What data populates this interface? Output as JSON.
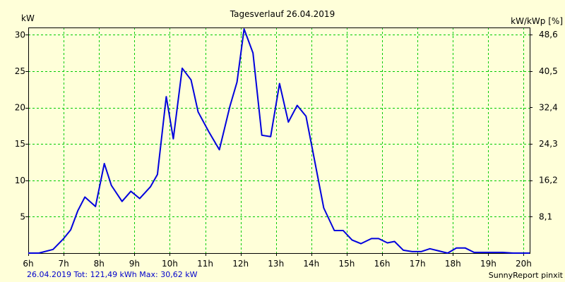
{
  "chart_data": {
    "type": "line",
    "title": "Tagesverlauf 26.04.2019",
    "ylabel": "kW",
    "y2label": "kW/kWp [%]",
    "ylim": [
      0,
      31
    ],
    "y2lim": [
      0,
      50.2
    ],
    "yticks": [
      5,
      10,
      15,
      20,
      25,
      30
    ],
    "yticklabels": [
      "5",
      "10",
      "15",
      "20",
      "25",
      "30"
    ],
    "y2ticks": [
      8.1,
      16.2,
      24.3,
      32.4,
      40.5,
      48.6
    ],
    "y2ticklabels": [
      "8,1",
      "16,2",
      "24,3",
      "32,4",
      "40,5",
      "48,6"
    ],
    "xlim": [
      6,
      20.17
    ],
    "xticks": [
      6,
      7,
      8,
      9,
      10,
      11,
      12,
      13,
      14,
      15,
      16,
      17,
      18,
      19,
      20
    ],
    "xticklabels": [
      "6h",
      "7h",
      "8h",
      "9h",
      "10h",
      "11h",
      "12h",
      "13h",
      "14h",
      "15h",
      "16h",
      "17h",
      "18h",
      "19h",
      "20h"
    ],
    "grid": true,
    "colors": {
      "background": "#ffffd9",
      "grid": "#00cc00",
      "line": "#0000dd",
      "footer_left": "#0000cc"
    },
    "series": [
      {
        "x": [
          6.0,
          6.3,
          6.7,
          7.0,
          7.2,
          7.4,
          7.6,
          7.9,
          8.15,
          8.35,
          8.65,
          8.9,
          9.15,
          9.45,
          9.65,
          9.9,
          10.1,
          10.35,
          10.6,
          10.8,
          11.1,
          11.4,
          11.7,
          11.9,
          12.1,
          12.35,
          12.6,
          12.85,
          13.1,
          13.35,
          13.6,
          13.85,
          14.1,
          14.35,
          14.65,
          14.9,
          15.15,
          15.4,
          15.7,
          15.9,
          16.15,
          16.35,
          16.6,
          16.85,
          17.1,
          17.35,
          17.6,
          17.85,
          18.1,
          18.35,
          18.6,
          18.85,
          19.1,
          19.4,
          19.7,
          20.0,
          20.17
        ],
        "y": [
          0,
          0,
          0.5,
          2,
          3.2,
          5.8,
          7.7,
          6.4,
          12.3,
          9.3,
          7.1,
          8.5,
          7.5,
          9.1,
          10.8,
          21.5,
          15.7,
          25.4,
          23.8,
          19.4,
          16.7,
          14.2,
          20.2,
          23.5,
          30.8,
          27.5,
          16.2,
          16.0,
          23.3,
          18.0,
          20.3,
          18.8,
          12.5,
          6.2,
          3.1,
          3.1,
          1.8,
          1.3,
          2.0,
          2.0,
          1.4,
          1.6,
          0.4,
          0.2,
          0.2,
          0.6,
          0.3,
          0.0,
          0.7,
          0.7,
          0.1,
          0.1,
          0.1,
          0.1,
          0.0,
          0.0,
          0.0
        ]
      }
    ]
  },
  "footer": {
    "left": "26.04.2019 Tot: 121,49 kWh Max: 30,62 kW",
    "right": "SunnyReport pinxit"
  }
}
